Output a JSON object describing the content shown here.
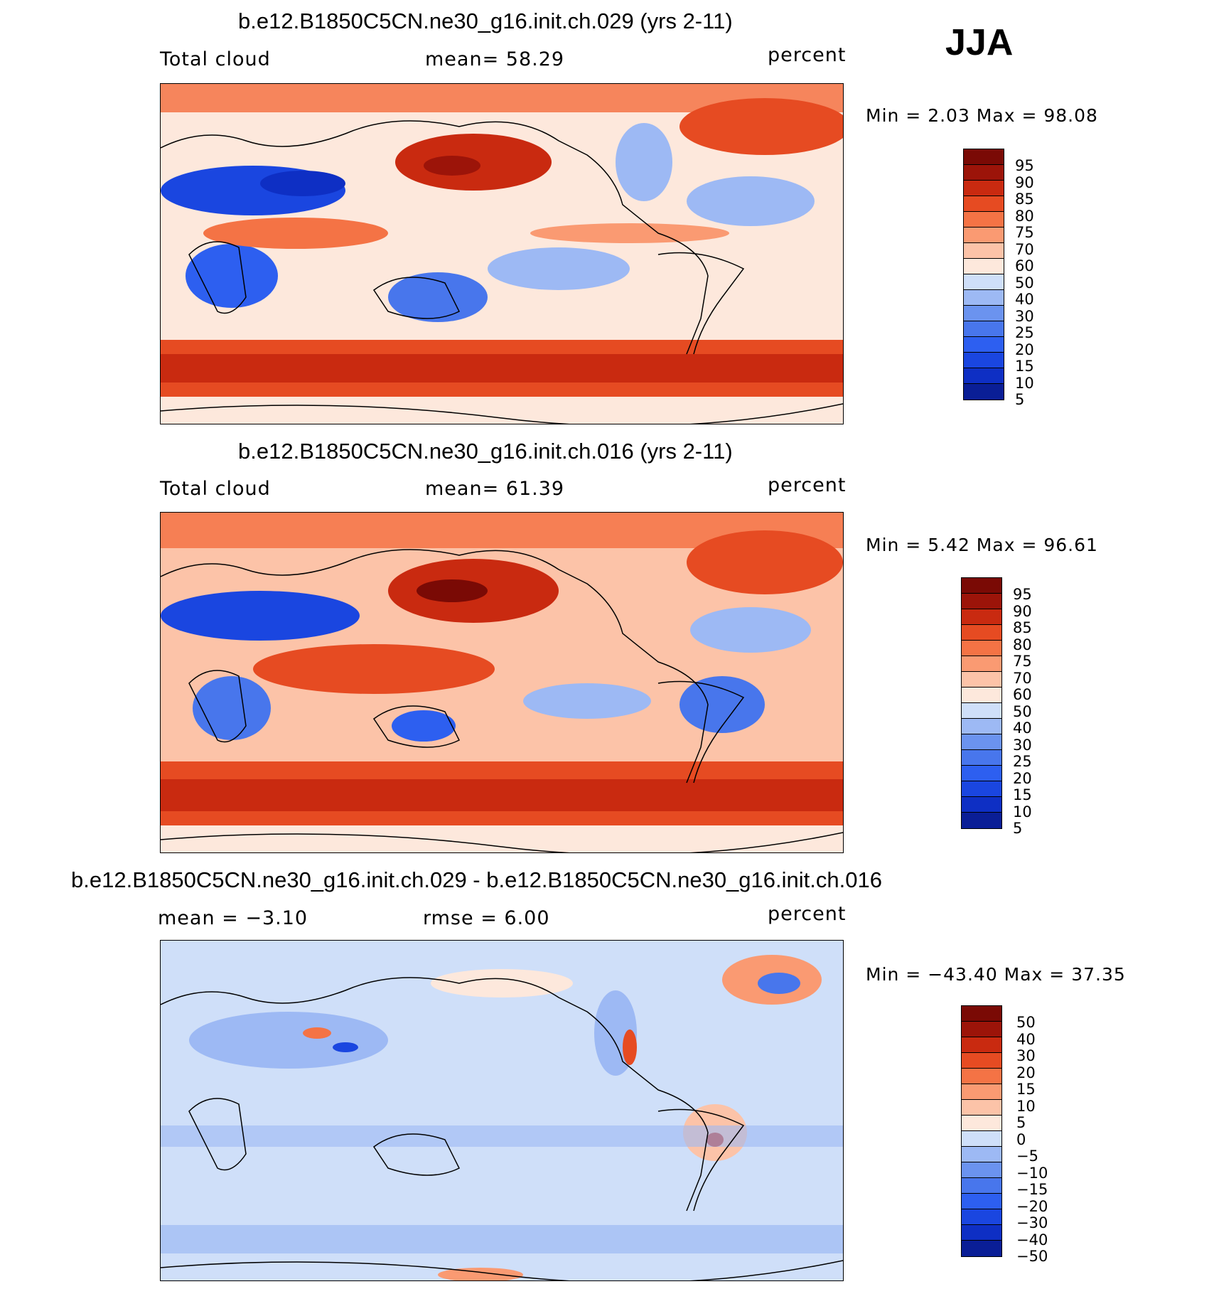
{
  "season": "JJA",
  "panels": [
    {
      "title": "b.e12.B1850C5CN.ne30_g16.init.ch.029 (yrs 2-11)",
      "left_label": "Total cloud",
      "center_label": "mean=   58.29",
      "right_label": "percent",
      "minmax": "Min =    2.03 Max =   98.08",
      "colorbar_labels": [
        "95",
        "90",
        "85",
        "80",
        "75",
        "70",
        "60",
        "50",
        "40",
        "30",
        "25",
        "20",
        "15",
        "10",
        "5"
      ]
    },
    {
      "title": "b.e12.B1850C5CN.ne30_g16.init.ch.016 (yrs 2-11)",
      "left_label": "Total cloud",
      "center_label": "mean=   61.39",
      "right_label": "percent",
      "minmax": "Min =    5.42 Max =   96.61",
      "colorbar_labels": [
        "95",
        "90",
        "85",
        "80",
        "75",
        "70",
        "60",
        "50",
        "40",
        "30",
        "25",
        "20",
        "15",
        "10",
        "5"
      ]
    },
    {
      "title": "b.e12.B1850C5CN.ne30_g16.init.ch.029 - b.e12.B1850C5CN.ne30_g16.init.ch.016",
      "left_label": "mean =   −3.10",
      "center_label": "rmse =    6.00",
      "right_label": "percent",
      "minmax": "Min = −43.40 Max =   37.35",
      "colorbar_labels": [
        "50",
        "40",
        "30",
        "20",
        "15",
        "10",
        "5",
        "0",
        "−5",
        "−10",
        "−15",
        "−20",
        "−30",
        "−40",
        "−50"
      ]
    }
  ],
  "chart_data": [
    {
      "type": "heatmap",
      "title": "b.e12.B1850C5CN.ne30_g16.init.ch.029 (yrs 2-11)",
      "variable": "Total cloud",
      "units": "percent",
      "mean": 58.29,
      "min": 2.03,
      "max": 98.08,
      "levels": [
        5,
        10,
        15,
        20,
        25,
        30,
        40,
        50,
        60,
        70,
        75,
        80,
        85,
        90,
        95
      ],
      "colors": [
        "#0a1e96",
        "#0e2fc4",
        "#1a46e0",
        "#2d5ff0",
        "#4876ec",
        "#6b93ef",
        "#9db9f4",
        "#cfdff9",
        "#fde8dc",
        "#fcc3a8",
        "#fa9a72",
        "#f47345",
        "#e64b22",
        "#c92a10",
        "#9c1409",
        "#7a0a05"
      ]
    },
    {
      "type": "heatmap",
      "title": "b.e12.B1850C5CN.ne30_g16.init.ch.016 (yrs 2-11)",
      "variable": "Total cloud",
      "units": "percent",
      "mean": 61.39,
      "min": 5.42,
      "max": 96.61,
      "levels": [
        5,
        10,
        15,
        20,
        25,
        30,
        40,
        50,
        60,
        70,
        75,
        80,
        85,
        90,
        95
      ],
      "colors": [
        "#0a1e96",
        "#0e2fc4",
        "#1a46e0",
        "#2d5ff0",
        "#4876ec",
        "#6b93ef",
        "#9db9f4",
        "#cfdff9",
        "#fde8dc",
        "#fcc3a8",
        "#fa9a72",
        "#f47345",
        "#e64b22",
        "#c92a10",
        "#9c1409",
        "#7a0a05"
      ]
    },
    {
      "type": "heatmap",
      "title": "b.e12.B1850C5CN.ne30_g16.init.ch.029 - b.e12.B1850C5CN.ne30_g16.init.ch.016",
      "variable": "difference",
      "units": "percent",
      "mean": -3.1,
      "rmse": 6.0,
      "min": -43.4,
      "max": 37.35,
      "levels": [
        -50,
        -40,
        -30,
        -20,
        -15,
        -10,
        -5,
        0,
        5,
        10,
        15,
        20,
        30,
        40,
        50
      ],
      "colors": [
        "#0a1e96",
        "#0e2fc4",
        "#1a46e0",
        "#2d5ff0",
        "#4876ec",
        "#6b93ef",
        "#9db9f4",
        "#cfdff9",
        "#fde8dc",
        "#fcc3a8",
        "#fa9a72",
        "#f47345",
        "#e64b22",
        "#c92a10",
        "#9c1409",
        "#7a0a05"
      ]
    }
  ]
}
